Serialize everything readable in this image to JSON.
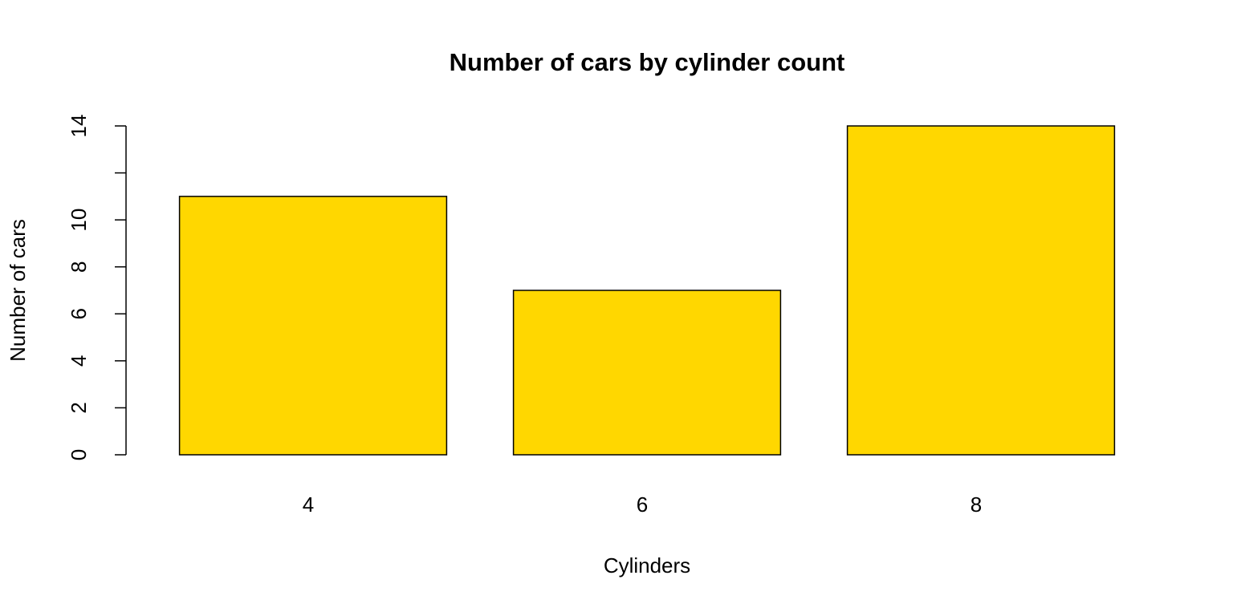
{
  "chart_data": {
    "type": "bar",
    "title": "Number of cars by cylinder count",
    "x_label": "Cylinders",
    "y_label": "Number of cars",
    "categories": [
      "4",
      "6",
      "8"
    ],
    "values": [
      11,
      7,
      14
    ],
    "color": "#ffd700",
    "ylim": [
      0,
      14
    ],
    "yticks": [
      0,
      2,
      4,
      6,
      8,
      10,
      {
        "value": 12,
        "label": null
      },
      14
    ],
    "grid": false
  }
}
